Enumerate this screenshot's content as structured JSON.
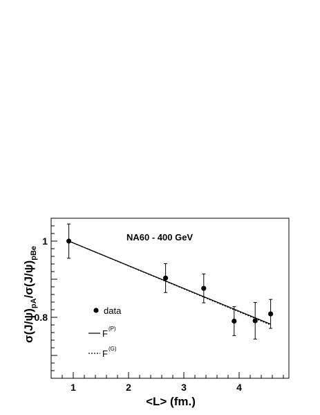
{
  "chart_data": {
    "type": "scatter",
    "title": "NA60 - 400 GeV",
    "xlabel": "<L> (fm.)",
    "ylabel": {
      "main": "σ(J/ψ)",
      "sub1": "pA",
      "mid": "/σ(J/ψ)",
      "sub2": "pBe"
    },
    "xlim": [
      0.6,
      4.9
    ],
    "ylim": [
      0.64,
      1.06
    ],
    "xticks": [
      {
        "value": 1,
        "label": "1"
      },
      {
        "value": 2,
        "label": "2"
      },
      {
        "value": 3,
        "label": "3"
      },
      {
        "value": 4,
        "label": "4"
      }
    ],
    "yticks": [
      {
        "value": 0.8,
        "label": "0.8"
      },
      {
        "value": 1.0,
        "label": "1"
      }
    ],
    "series": [
      {
        "name": "data",
        "kind": "points",
        "x": [
          0.92,
          2.67,
          3.36,
          3.91,
          4.29,
          4.57
        ],
        "y": [
          1.0,
          0.903,
          0.876,
          0.79,
          0.791,
          0.809
        ],
        "err": [
          0.045,
          0.038,
          0.038,
          0.038,
          0.048,
          0.038
        ]
      },
      {
        "name": "F",
        "sup": "(P)",
        "kind": "line",
        "style": "solid",
        "x": [
          0.92,
          4.57
        ],
        "y": [
          1.0,
          0.782
        ]
      },
      {
        "name": "F",
        "sup": "(G)",
        "kind": "line",
        "style": "dotted",
        "x": [
          0.92,
          4.57
        ],
        "y": [
          1.0,
          0.78
        ]
      }
    ],
    "legend": "bottom-left",
    "grid": false,
    "colors": {
      "data": "#000000",
      "lines": "#000000"
    }
  }
}
